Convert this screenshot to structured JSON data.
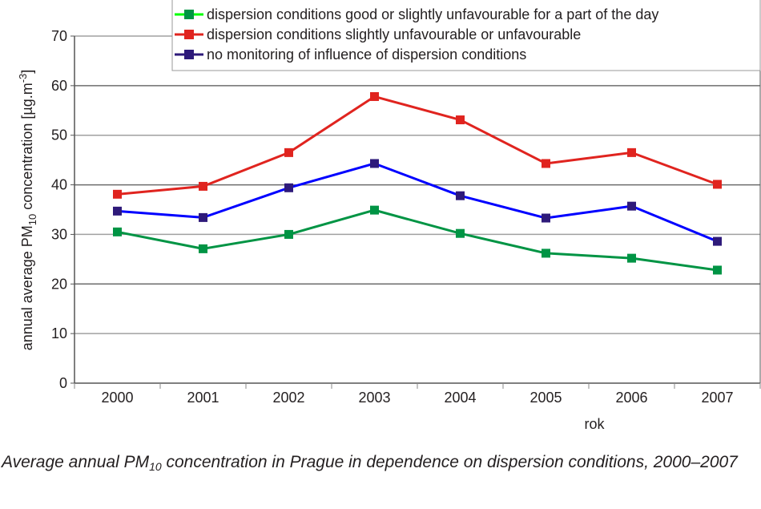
{
  "chart_data": {
    "type": "line",
    "title": "",
    "xlabel": "rok",
    "ylabel": "annual average PM10 concentration [µg.m-3]",
    "ylabel_parts": {
      "pre": "annual average PM",
      "sub": "10",
      "mid": " concentration [µg.m",
      "sup": "-3",
      "post": "]"
    },
    "ylim": [
      0,
      70
    ],
    "yticks": [
      0,
      10,
      20,
      30,
      40,
      50,
      60,
      70
    ],
    "grid": true,
    "legend_position": "top-right",
    "categories": [
      "2000",
      "2001",
      "2002",
      "2003",
      "2004",
      "2005",
      "2006",
      "2007"
    ],
    "series": [
      {
        "name": "dispersion conditions good or slightly unfavourable for a part of the day",
        "line_color": "#009444",
        "legend_line_color": "#00ff00",
        "marker_color": "#009444",
        "values": [
          30.5,
          27.1,
          30.0,
          34.9,
          30.2,
          26.2,
          25.2,
          22.8
        ]
      },
      {
        "name": "dispersion conditions slightly unfavourable or unfavourable",
        "line_color": "#e0241f",
        "legend_line_color": "#e0241f",
        "marker_color": "#e0241f",
        "values": [
          38.1,
          39.7,
          46.5,
          57.8,
          53.1,
          44.3,
          46.5,
          40.1
        ]
      },
      {
        "name": "no monitoring of influence of dispersion conditions",
        "line_color": "#0000ff",
        "legend_line_color": "#2e1a7a",
        "marker_color": "#2e1a7a",
        "values": [
          34.7,
          33.4,
          39.4,
          44.3,
          37.8,
          33.3,
          35.7,
          28.6
        ]
      }
    ]
  },
  "caption": {
    "pre": "Average annual PM",
    "sub": "10",
    "post": " concentration in Prague in dependence on dispersion conditions, 2000–2007"
  }
}
